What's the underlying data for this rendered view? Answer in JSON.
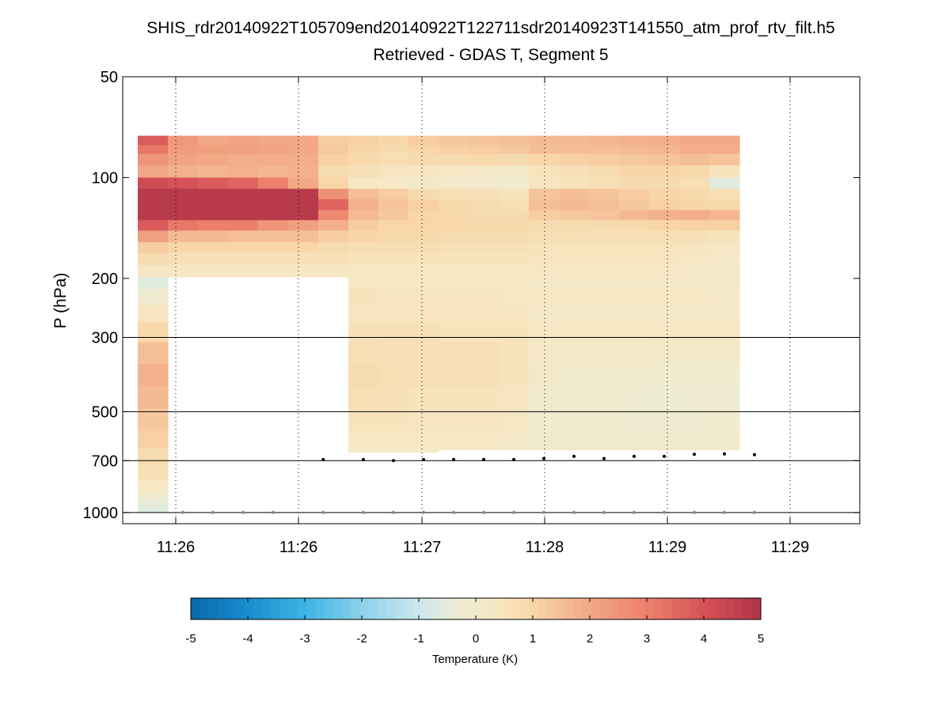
{
  "chart_data": {
    "type": "heatmap",
    "title": "SHIS_rdr20140922T105709end20140922T122711sdr20140923T141550_atm_prof_rtv_filt.h5",
    "subtitle": "Retrieved - GDAS T, Segment 5",
    "xlabel": "",
    "ylabel": "P (hPa)",
    "y_scale": "log",
    "y_reversed": true,
    "ylim": [
      50,
      1080
    ],
    "y_ticks": [
      50,
      100,
      200,
      300,
      500,
      700,
      1000
    ],
    "y_tick_labels": [
      "50",
      "100",
      "200",
      "300",
      "500",
      "700",
      "1000"
    ],
    "x_tick_labels": [
      "11:26",
      "11:26",
      "11:27",
      "11:28",
      "11:29",
      "11:29"
    ],
    "grid": "dotted vertical at x ticks; solid horizontal at 300, 500, 700, 1000 hPa",
    "colorbar": {
      "label": "Temperature (K)",
      "range": [
        -5,
        5
      ],
      "ticks": [
        -5,
        -4,
        -3,
        -2,
        -1,
        0,
        1,
        2,
        3,
        4,
        5
      ],
      "tick_labels": [
        "-5",
        "-4",
        "-3",
        "-2",
        "-1",
        "0",
        "1",
        "2",
        "3",
        "4",
        "5"
      ],
      "colormap": "diverging blue-white-red"
    },
    "columns": [
      {
        "t": "11:25:52",
        "bottom_p": 1000,
        "values": [
          3.8,
          3.2,
          2.5,
          2.0,
          4.2,
          4.8,
          4.8,
          4.8,
          3.8,
          2.2,
          1.2,
          0.8,
          0.3,
          -0.6,
          -0.2,
          0.4,
          0.9,
          1.5,
          1.8,
          1.6,
          1.3,
          1.1,
          0.8,
          0.6,
          0.3,
          0.0,
          -0.3,
          -0.5,
          -0.6,
          -0.7,
          0.8,
          1.5
        ]
      },
      {
        "t": "11:26:04",
        "bottom_p": 210,
        "values": [
          2.4,
          2.3,
          2.1,
          1.8,
          4.0,
          4.8,
          4.8,
          4.8,
          3.2,
          1.6,
          1.0,
          0.6,
          0.3
        ]
      },
      {
        "t": "11:26:16",
        "bottom_p": 210,
        "values": [
          2.0,
          2.2,
          2.0,
          1.7,
          3.8,
          4.8,
          4.8,
          4.8,
          3.0,
          1.6,
          1.0,
          0.6,
          0.3
        ]
      },
      {
        "t": "11:26:28",
        "bottom_p": 210,
        "values": [
          2.1,
          2.2,
          1.9,
          1.8,
          3.6,
          4.8,
          4.8,
          4.8,
          3.0,
          1.5,
          1.0,
          0.6,
          0.3
        ]
      },
      {
        "t": "11:26:40",
        "bottom_p": 210,
        "values": [
          2.0,
          2.1,
          1.9,
          1.7,
          3.0,
          4.8,
          4.8,
          4.8,
          2.5,
          1.5,
          1.0,
          0.6,
          0.3
        ]
      },
      {
        "t": "11:26:52",
        "bottom_p": 210,
        "values": [
          2.0,
          2.0,
          1.9,
          1.8,
          2.0,
          4.8,
          4.8,
          4.8,
          2.2,
          1.5,
          1.0,
          0.6,
          0.3
        ]
      },
      {
        "t": "11:27:04",
        "bottom_p": 210,
        "values": [
          1.2,
          1.3,
          1.1,
          0.8,
          1.0,
          2.6,
          3.6,
          2.8,
          1.8,
          1.2,
          0.8,
          0.6,
          0.3
        ]
      },
      {
        "t": "11:27:16",
        "bottom_p": 660,
        "values": [
          1.1,
          1.0,
          0.9,
          0.6,
          0.3,
          1.5,
          1.8,
          1.6,
          1.2,
          1.0,
          0.7,
          0.5,
          0.3,
          0.3,
          0.5,
          0.4,
          0.6,
          0.7,
          0.8,
          0.7,
          0.5,
          0.3,
          0.2
        ]
      },
      {
        "t": "11:27:28",
        "bottom_p": 660,
        "values": [
          1.0,
          0.8,
          0.7,
          0.4,
          0.2,
          1.2,
          1.4,
          1.3,
          1.0,
          0.9,
          0.7,
          0.5,
          0.3,
          0.3,
          0.4,
          0.4,
          0.6,
          0.6,
          0.7,
          0.6,
          0.5,
          0.3,
          0.2
        ]
      },
      {
        "t": "11:27:40",
        "bottom_p": 660,
        "values": [
          1.2,
          1.0,
          0.8,
          0.4,
          0.1,
          0.8,
          1.1,
          1.0,
          1.0,
          0.9,
          0.7,
          0.5,
          0.3,
          0.3,
          0.4,
          0.4,
          0.6,
          0.6,
          0.6,
          0.5,
          0.4,
          0.3,
          0.2
        ]
      },
      {
        "t": "11:27:52",
        "bottom_p": 650,
        "values": [
          1.3,
          1.1,
          0.8,
          0.3,
          0.0,
          0.7,
          0.9,
          0.9,
          1.0,
          0.8,
          0.6,
          0.5,
          0.3,
          0.3,
          0.4,
          0.4,
          0.5,
          0.6,
          0.6,
          0.5,
          0.4,
          0.3,
          0.2
        ]
      },
      {
        "t": "11:28:04",
        "bottom_p": 650,
        "values": [
          1.4,
          1.2,
          0.9,
          0.2,
          0.0,
          0.6,
          0.8,
          0.8,
          0.9,
          0.8,
          0.6,
          0.5,
          0.3,
          0.3,
          0.4,
          0.4,
          0.5,
          0.6,
          0.6,
          0.5,
          0.4,
          0.3,
          0.2
        ]
      },
      {
        "t": "11:28:16",
        "bottom_p": 650,
        "values": [
          1.5,
          1.3,
          0.8,
          0.1,
          -0.1,
          0.5,
          0.7,
          0.8,
          0.9,
          0.8,
          0.6,
          0.5,
          0.3,
          0.3,
          0.3,
          0.4,
          0.5,
          0.5,
          0.5,
          0.4,
          0.3,
          0.2,
          0.1
        ]
      },
      {
        "t": "11:28:28",
        "bottom_p": 650,
        "values": [
          1.6,
          1.5,
          1.0,
          0.5,
          0.4,
          1.4,
          1.5,
          1.2,
          0.8,
          0.7,
          0.5,
          0.4,
          0.3,
          0.2,
          0.3,
          0.2,
          0.3,
          0.2,
          0.1,
          0.0,
          -0.1,
          0.0,
          0.1
        ]
      },
      {
        "t": "11:28:40",
        "bottom_p": 650,
        "values": [
          1.6,
          1.5,
          1.1,
          0.6,
          0.5,
          1.5,
          1.6,
          1.3,
          0.8,
          0.7,
          0.5,
          0.4,
          0.3,
          0.2,
          0.3,
          0.2,
          0.3,
          0.2,
          0.0,
          -0.1,
          -0.1,
          0.0,
          0.1
        ]
      },
      {
        "t": "11:28:52",
        "bottom_p": 650,
        "values": [
          1.7,
          1.5,
          1.2,
          0.8,
          0.7,
          1.4,
          1.5,
          1.4,
          0.8,
          0.6,
          0.5,
          0.4,
          0.3,
          0.2,
          0.3,
          0.2,
          0.3,
          0.2,
          0.0,
          -0.1,
          -0.1,
          0.0,
          0.1
        ]
      },
      {
        "t": "11:29:04",
        "bottom_p": 650,
        "values": [
          1.8,
          1.6,
          1.3,
          1.0,
          0.8,
          1.2,
          1.3,
          1.6,
          0.9,
          0.6,
          0.5,
          0.4,
          0.3,
          0.2,
          0.3,
          0.2,
          0.3,
          0.2,
          0.0,
          -0.2,
          -0.2,
          0.0,
          0.1
        ]
      },
      {
        "t": "11:29:16",
        "bottom_p": 650,
        "values": [
          1.9,
          1.7,
          1.4,
          1.0,
          0.8,
          1.0,
          1.1,
          1.8,
          1.0,
          0.6,
          0.5,
          0.4,
          0.3,
          0.2,
          0.3,
          0.2,
          0.3,
          0.1,
          -0.1,
          -0.3,
          -0.2,
          0.0,
          0.1
        ]
      },
      {
        "t": "11:29:28",
        "bottom_p": 650,
        "values": [
          2.0,
          1.9,
          1.5,
          0.9,
          0.7,
          0.9,
          1.0,
          1.9,
          1.1,
          0.6,
          0.4,
          0.3,
          0.2,
          0.2,
          0.3,
          0.2,
          0.3,
          0.1,
          -0.1,
          -0.2,
          -0.2,
          0.0,
          0.1
        ]
      },
      {
        "t": "11:29:40",
        "bottom_p": 650,
        "values": [
          2.0,
          1.9,
          1.4,
          0.5,
          -0.6,
          0.7,
          0.9,
          1.7,
          1.1,
          0.5,
          0.3,
          0.2,
          0.1,
          0.1,
          0.2,
          0.2,
          0.3,
          0.1,
          -0.1,
          -0.2,
          -0.1,
          0.0,
          0.1
        ]
      }
    ],
    "levels_top": [
      75,
      80,
      85,
      92,
      100,
      108,
      116,
      125,
      134,
      144,
      156,
      168,
      182,
      198,
      215,
      240,
      270,
      310,
      360,
      420,
      490,
      570,
      640,
      720,
      800,
      860,
      900,
      930,
      960,
      985,
      1000
    ],
    "surface_pressure_markers": [
      {
        "t": "11:27:00",
        "p": 695
      },
      {
        "t": "11:27:16",
        "p": 695
      },
      {
        "t": "11:27:28",
        "p": 700
      },
      {
        "t": "11:27:40",
        "p": 695
      },
      {
        "t": "11:27:52",
        "p": 695
      },
      {
        "t": "11:28:04",
        "p": 695
      },
      {
        "t": "11:28:16",
        "p": 695
      },
      {
        "t": "11:28:28",
        "p": 690
      },
      {
        "t": "11:28:40",
        "p": 680
      },
      {
        "t": "11:28:52",
        "p": 690
      },
      {
        "t": "11:29:04",
        "p": 680
      },
      {
        "t": "11:29:16",
        "p": 680
      },
      {
        "t": "11:29:28",
        "p": 670
      },
      {
        "t": "11:29:40",
        "p": 668
      },
      {
        "t": "11:29:52",
        "p": 672
      }
    ],
    "bottom_markers_p": 1000
  }
}
